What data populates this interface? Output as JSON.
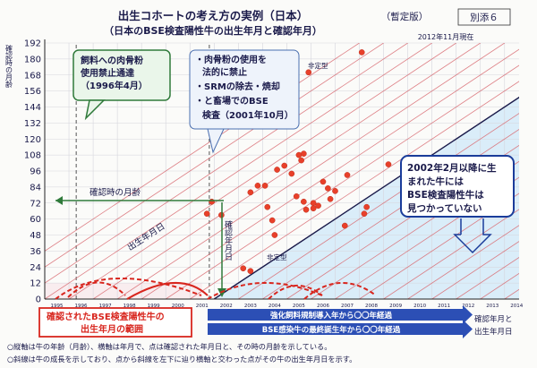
{
  "header": {
    "title": "出生コホートの考え方の実例（日本）",
    "subtitle": "（日本のBSE検査陽性牛の出生年月と確認年月）",
    "status_badge": "（暫定版）",
    "attachment_label": "別添６",
    "date_note": "2012年11月現在"
  },
  "chart_data": {
    "type": "scatter",
    "ylabel": "確認時の月齢",
    "xlabel": "確認年月と出生年月",
    "yticks": [
      0,
      12,
      24,
      36,
      48,
      60,
      72,
      84,
      96,
      108,
      120,
      132,
      144,
      156,
      168,
      180,
      192
    ],
    "ylim": [
      0,
      192
    ],
    "xlim": [
      1995,
      2014.6
    ],
    "xticks": [
      "1995",
      "1996",
      "1997",
      "1998",
      "1999",
      "2000",
      "2001",
      "2002",
      "2003",
      "2004",
      "2005",
      "2006",
      "2007",
      "2008",
      "2009",
      "2010",
      "2011",
      "2012",
      "2013",
      "2014"
    ],
    "grid": true,
    "series": [
      {
        "color": "#e8402a",
        "points": [
          {
            "x": 2001.7,
            "y": 64
          },
          {
            "x": 2001.9,
            "y": 73
          },
          {
            "x": 2002.3,
            "y": 63
          },
          {
            "x": 2003.5,
            "y": 80
          },
          {
            "x": 2003.8,
            "y": 85
          },
          {
            "x": 2004.1,
            "y": 85
          },
          {
            "x": 2004.2,
            "y": 69
          },
          {
            "x": 2004.6,
            "y": 97
          },
          {
            "x": 2004.9,
            "y": 100
          },
          {
            "x": 2005.2,
            "y": 94
          },
          {
            "x": 2005.5,
            "y": 108
          },
          {
            "x": 2005.7,
            "y": 109
          },
          {
            "x": 2005.6,
            "y": 104
          },
          {
            "x": 2005.4,
            "y": 77
          },
          {
            "x": 2005.7,
            "y": 73
          },
          {
            "x": 2005.8,
            "y": 67
          },
          {
            "x": 2006.1,
            "y": 72
          },
          {
            "x": 2006.1,
            "y": 68
          },
          {
            "x": 2006.3,
            "y": 70
          },
          {
            "x": 2006.5,
            "y": 88
          },
          {
            "x": 2006.7,
            "y": 83
          },
          {
            "x": 2006.8,
            "y": 75
          },
          {
            "x": 2007.0,
            "y": 81
          },
          {
            "x": 2007.5,
            "y": 93
          },
          {
            "x": 2007.4,
            "y": 55
          },
          {
            "x": 2008.2,
            "y": 64
          },
          {
            "x": 2008.3,
            "y": 69
          },
          {
            "x": 2009.2,
            "y": 101
          },
          {
            "x": 2004.4,
            "y": 59
          },
          {
            "x": 2004.5,
            "y": 48
          },
          {
            "x": 2005.9,
            "y": 170
          },
          {
            "x": 2008.1,
            "y": 185
          },
          {
            "x": 2003.2,
            "y": 23
          },
          {
            "x": 2003.5,
            "y": 21
          }
        ]
      }
    ],
    "annotations": {
      "feed_ban": "飼料への肉骨粉使用禁止通達（1996年4月）",
      "measures": [
        "・肉骨粉の使用を法的に禁止",
        "・SRMの除去・焼却",
        "・と畜場でのBSE検査（2001年10月）"
      ],
      "born_after": "2002年2月以降に生まれた牛にはBSE検査陽性牛は見つかっていない",
      "age_at_confirmation": "確認時の月齢",
      "birth_date_line": "出生年月日",
      "confirmation_date": "確認年月日",
      "atypical_1": "非定型",
      "atypical_2": "非定型",
      "range_label": "確認されたBSE検査陽性牛の出生年月の範囲",
      "bar1": "強化飼料規制導入年から〇〇年経過",
      "bar2": "BSE感染牛の最終誕生年から〇〇年経過"
    }
  },
  "footer": {
    "note1": "○縦軸は牛の年齢（月齢）、横軸は年月で、点は確認された年月日と、その時の月齢を示している。",
    "note2": "○斜線は牛の成長を示しており、点から斜線を左下に辿り横軸と交わった点がその牛の出生年月日を示す。"
  },
  "colors": {
    "point": "#e8402a",
    "accent_green": "#2f7a3a",
    "accent_blue": "#1a3c9a",
    "label_red": "#d8261e",
    "bg_blue": "#cfe8f8",
    "bar_blue": "#2c4fb5",
    "diag_red": "#d96b72"
  }
}
